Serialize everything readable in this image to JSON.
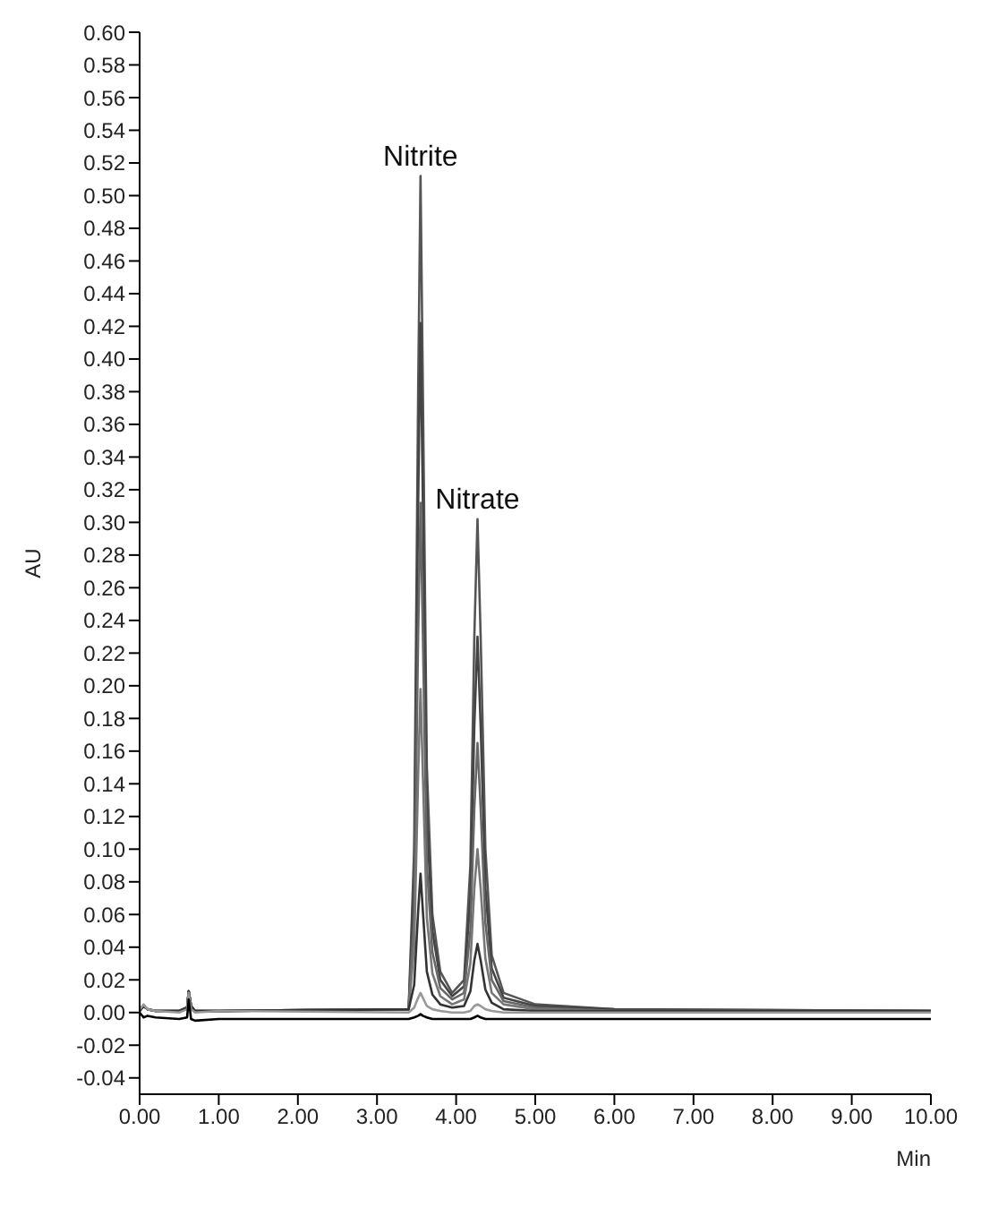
{
  "chart_data": {
    "type": "line",
    "xlabel": "Min",
    "ylabel": "AU",
    "x": [
      0,
      0.05,
      0.1,
      0.2,
      0.5,
      0.6,
      0.62,
      0.65,
      0.7,
      1.0,
      3.4,
      3.47,
      3.52,
      3.55,
      3.58,
      3.63,
      3.7,
      3.8,
      3.95,
      4.1,
      4.18,
      4.23,
      4.27,
      4.31,
      4.37,
      4.45,
      4.6,
      5.0,
      6.0,
      10.0
    ],
    "series": [
      {
        "color": "#555555",
        "values": [
          0.001,
          0.004,
          0.002,
          0.001,
          0.001,
          0.003,
          0.013,
          0.004,
          0.001,
          0.001,
          0.002,
          0.1,
          0.38,
          0.512,
          0.38,
          0.15,
          0.06,
          0.025,
          0.012,
          0.02,
          0.09,
          0.23,
          0.302,
          0.23,
          0.1,
          0.035,
          0.012,
          0.005,
          0.002,
          0.001
        ]
      },
      {
        "color": "#444444",
        "values": [
          0.001,
          0.004,
          0.002,
          0.001,
          0.001,
          0.003,
          0.013,
          0.004,
          0.001,
          0.001,
          0.002,
          0.082,
          0.31,
          0.422,
          0.31,
          0.12,
          0.05,
          0.02,
          0.01,
          0.016,
          0.07,
          0.175,
          0.23,
          0.175,
          0.076,
          0.027,
          0.009,
          0.004,
          0.002,
          0.001
        ]
      },
      {
        "color": "#666666",
        "values": [
          0.001,
          0.004,
          0.002,
          0.001,
          0.001,
          0.003,
          0.013,
          0.004,
          0.001,
          0.001,
          0.002,
          0.06,
          0.23,
          0.312,
          0.23,
          0.09,
          0.037,
          0.015,
          0.008,
          0.012,
          0.05,
          0.125,
          0.165,
          0.125,
          0.055,
          0.02,
          0.007,
          0.003,
          0.001,
          0.001
        ]
      },
      {
        "color": "#777777",
        "values": [
          0.001,
          0.004,
          0.002,
          0.001,
          0.001,
          0.003,
          0.013,
          0.004,
          0.001,
          0.001,
          0.002,
          0.04,
          0.145,
          0.198,
          0.145,
          0.058,
          0.024,
          0.01,
          0.005,
          0.008,
          0.03,
          0.076,
          0.1,
          0.076,
          0.033,
          0.012,
          0.005,
          0.002,
          0.001,
          0.001
        ]
      },
      {
        "color": "#333333",
        "values": [
          0.001,
          0.004,
          0.002,
          0.001,
          0.001,
          0.003,
          0.013,
          0.004,
          0.001,
          0.001,
          0.002,
          0.017,
          0.062,
          0.085,
          0.062,
          0.025,
          0.011,
          0.005,
          0.003,
          0.004,
          0.013,
          0.032,
          0.042,
          0.032,
          0.014,
          0.006,
          0.002,
          0.001,
          0.001,
          0.001
        ]
      },
      {
        "color": "#999999",
        "values": [
          0.002,
          0.005,
          0.002,
          0.001,
          0,
          0.002,
          0.012,
          0.002,
          0,
          0.001,
          0,
          0.003,
          0.009,
          0.012,
          0.009,
          0.004,
          0.002,
          0.001,
          0,
          0,
          0.001,
          0.004,
          0.005,
          0.004,
          0.002,
          0.001,
          0,
          0,
          0,
          0
        ]
      },
      {
        "color": "#000000",
        "values": [
          0,
          -0.003,
          -0.002,
          -0.003,
          -0.004,
          -0.003,
          0.008,
          -0.004,
          -0.005,
          -0.004,
          -0.004,
          -0.003,
          -0.002,
          -0.001,
          -0.002,
          -0.003,
          -0.004,
          -0.004,
          -0.004,
          -0.004,
          -0.004,
          -0.003,
          -0.002,
          -0.003,
          -0.004,
          -0.004,
          -0.004,
          -0.004,
          -0.004,
          -0.004
        ]
      }
    ],
    "annotations": [
      {
        "text": "Nitrite",
        "x": 3.55,
        "y": 0.512
      },
      {
        "text": "Nitrate",
        "x": 4.27,
        "y": 0.302
      }
    ],
    "xlim": [
      0,
      10
    ],
    "ylim": [
      -0.05,
      0.6
    ],
    "xticks": [
      {
        "value": 0,
        "label": "0.00"
      },
      {
        "value": 1,
        "label": "1.00"
      },
      {
        "value": 2,
        "label": "2.00"
      },
      {
        "value": 3,
        "label": "3.00"
      },
      {
        "value": 4,
        "label": "4.00"
      },
      {
        "value": 5,
        "label": "5.00"
      },
      {
        "value": 6,
        "label": "6.00"
      },
      {
        "value": 7,
        "label": "7.00"
      },
      {
        "value": 8,
        "label": "8.00"
      },
      {
        "value": 9,
        "label": "9.00"
      },
      {
        "value": 10,
        "label": "10.00"
      }
    ],
    "yticks": [
      {
        "value": -0.04,
        "label": "-0.04"
      },
      {
        "value": -0.02,
        "label": "-0.02"
      },
      {
        "value": 0,
        "label": "0.00"
      },
      {
        "value": 0.02,
        "label": "0.02"
      },
      {
        "value": 0.04,
        "label": "0.04"
      },
      {
        "value": 0.06,
        "label": "0.06"
      },
      {
        "value": 0.08,
        "label": "0.08"
      },
      {
        "value": 0.1,
        "label": "0.10"
      },
      {
        "value": 0.12,
        "label": "0.12"
      },
      {
        "value": 0.14,
        "label": "0.14"
      },
      {
        "value": 0.16,
        "label": "0.16"
      },
      {
        "value": 0.18,
        "label": "0.18"
      },
      {
        "value": 0.2,
        "label": "0.20"
      },
      {
        "value": 0.22,
        "label": "0.22"
      },
      {
        "value": 0.24,
        "label": "0.24"
      },
      {
        "value": 0.26,
        "label": "0.26"
      },
      {
        "value": 0.28,
        "label": "0.28"
      },
      {
        "value": 0.3,
        "label": "0.30"
      },
      {
        "value": 0.32,
        "label": "0.32"
      },
      {
        "value": 0.34,
        "label": "0.34"
      },
      {
        "value": 0.36,
        "label": "0.36"
      },
      {
        "value": 0.38,
        "label": "0.38"
      },
      {
        "value": 0.4,
        "label": "0.40"
      },
      {
        "value": 0.42,
        "label": "0.42"
      },
      {
        "value": 0.44,
        "label": "0.44"
      },
      {
        "value": 0.46,
        "label": "0.46"
      },
      {
        "value": 0.48,
        "label": "0.48"
      },
      {
        "value": 0.5,
        "label": "0.50"
      },
      {
        "value": 0.52,
        "label": "0.52"
      },
      {
        "value": 0.54,
        "label": "0.54"
      },
      {
        "value": 0.56,
        "label": "0.56"
      },
      {
        "value": 0.58,
        "label": "0.58"
      },
      {
        "value": 0.6,
        "label": "0.60"
      }
    ],
    "grid": false,
    "legend": false,
    "marker": "none",
    "line_style": "solid"
  }
}
